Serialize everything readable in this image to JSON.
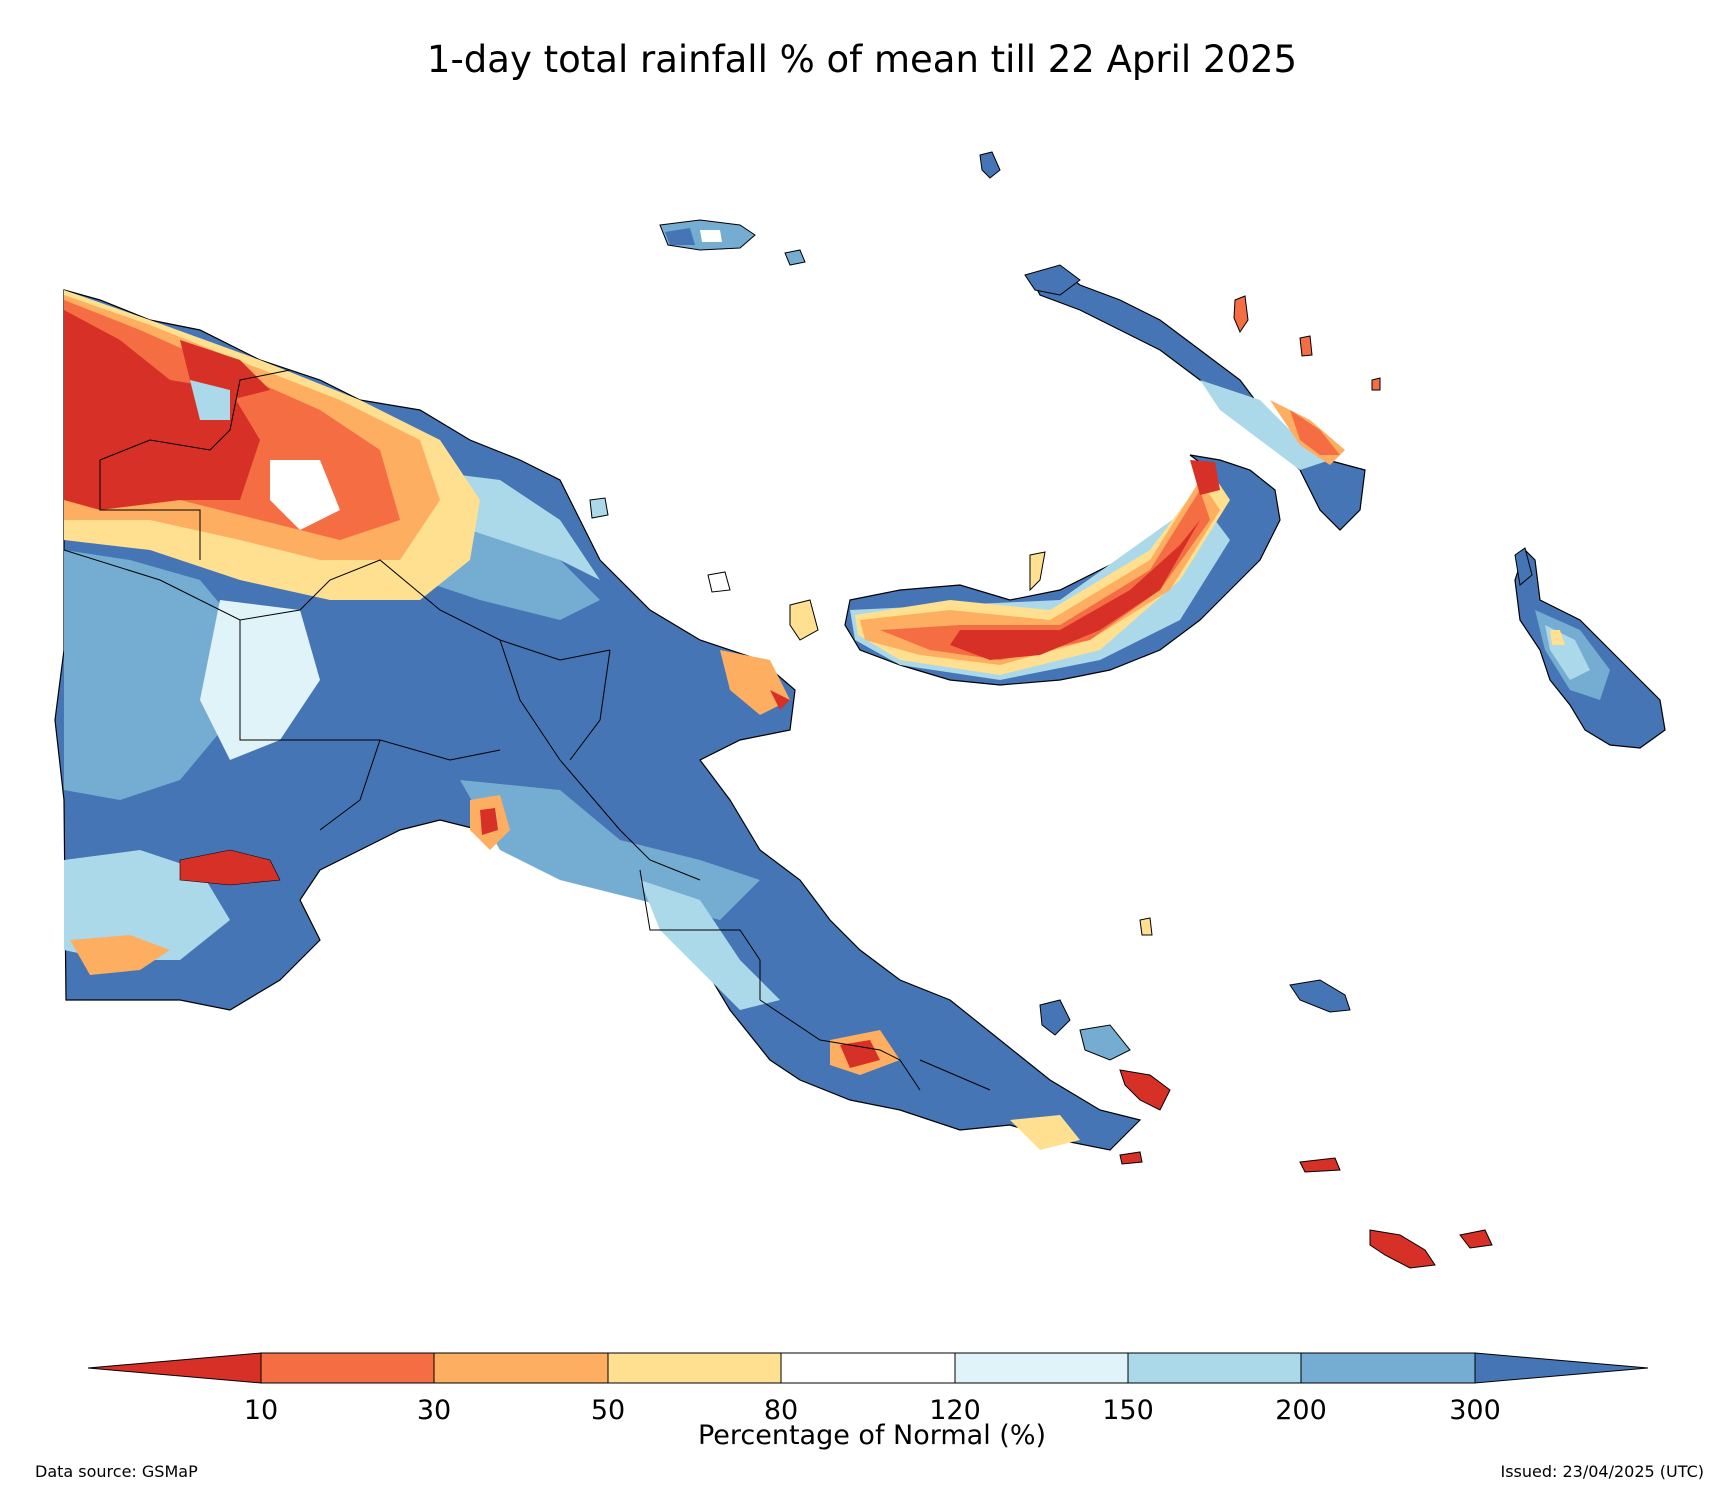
{
  "title": "1-day total rainfall % of mean till 22 April 2025",
  "colors": {
    "lt10": "#d73027",
    "c10_30": "#f46d43",
    "c30_50": "#fdae61",
    "c50_80": "#fee090",
    "c80_120": "#ffffff",
    "c120_150": "#e0f3f8",
    "c150_200": "#abd9e9",
    "c200_300": "#74add1",
    "gt300": "#4575b4"
  },
  "legend": {
    "ticks": [
      "10",
      "30",
      "50",
      "80",
      "120",
      "150",
      "200",
      "300"
    ],
    "label": "Percentage of Normal (%)"
  },
  "footer": {
    "source": "Data source: GSMaP",
    "issued": "Issued: 23/04/2025 (UTC)"
  }
}
